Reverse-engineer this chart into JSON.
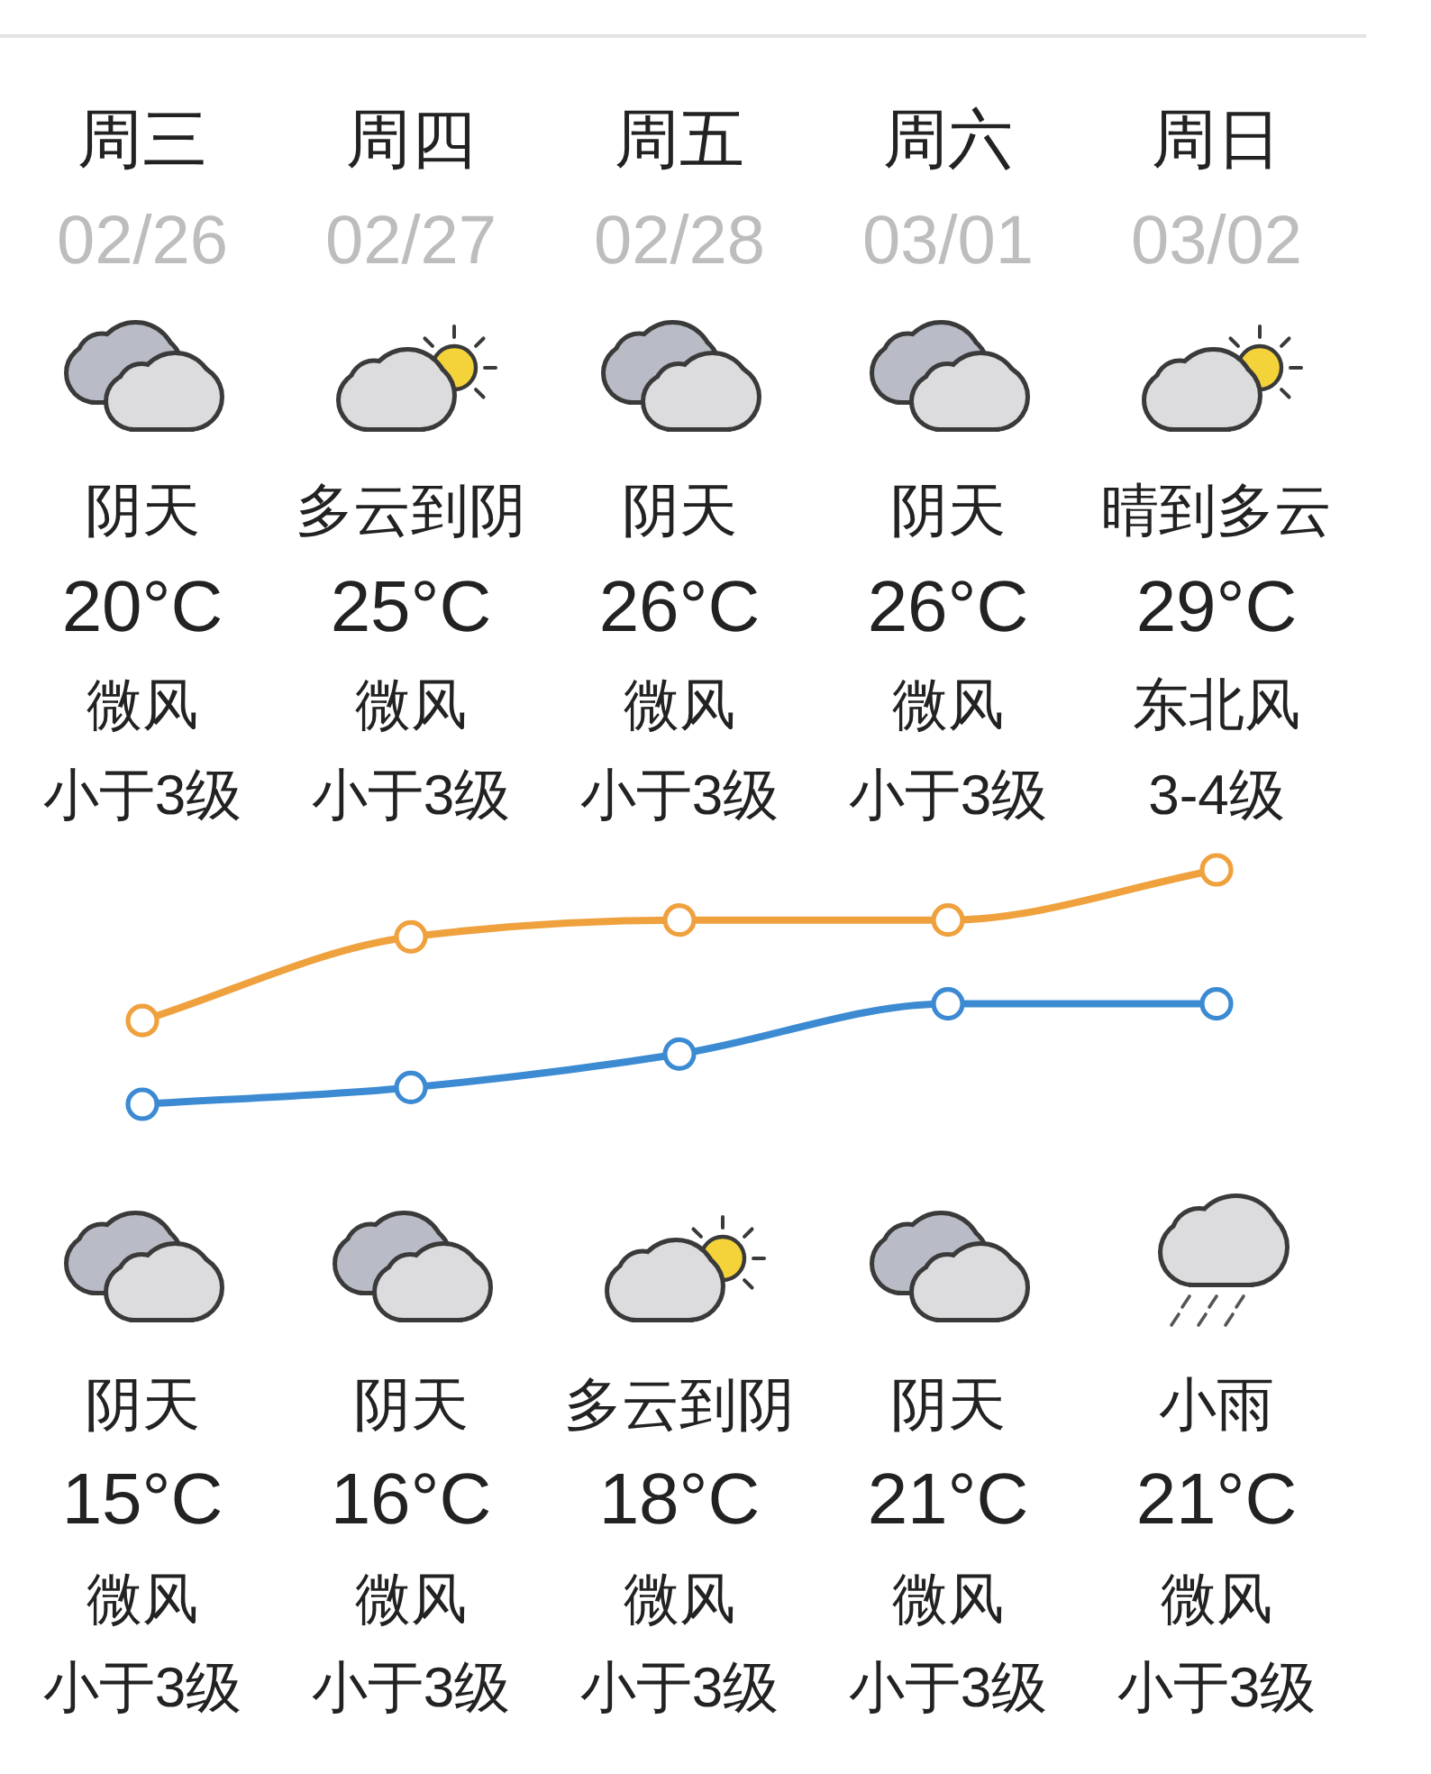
{
  "chart_data": {
    "type": "line",
    "categories": [
      "周三\n02/26",
      "周四\n02/27",
      "周五\n02/28",
      "周六\n03/01",
      "周日\n03/02"
    ],
    "series": [
      {
        "color": "#efa13e",
        "values": [
          20,
          25,
          26,
          26,
          29
        ],
        "value_labels": [
          "20°C",
          "25°C",
          "26°C",
          "26°C",
          "29°C"
        ]
      },
      {
        "color": "#3c8bd2",
        "values": [
          15,
          16,
          18,
          21,
          21
        ],
        "value_labels": [
          "15°C",
          "16°C",
          "18°C",
          "21°C",
          "21°C"
        ]
      }
    ],
    "marker": "circle",
    "annotations": [
      "阴天",
      "多云到阴",
      "阴天",
      "阴天",
      "晴到多云",
      "微风",
      "微风",
      "微风",
      "微风",
      "东北风",
      "小于3级",
      "小于3级",
      "小于3级",
      "小于3级",
      "3-4级",
      "阴天",
      "阴天",
      "多云到阴",
      "阴天",
      "小雨",
      "微风",
      "微风",
      "微风",
      "微风",
      "微风",
      "小于3级",
      "小于3级",
      "小于3级",
      "小于3级",
      "小于3级"
    ]
  }
}
